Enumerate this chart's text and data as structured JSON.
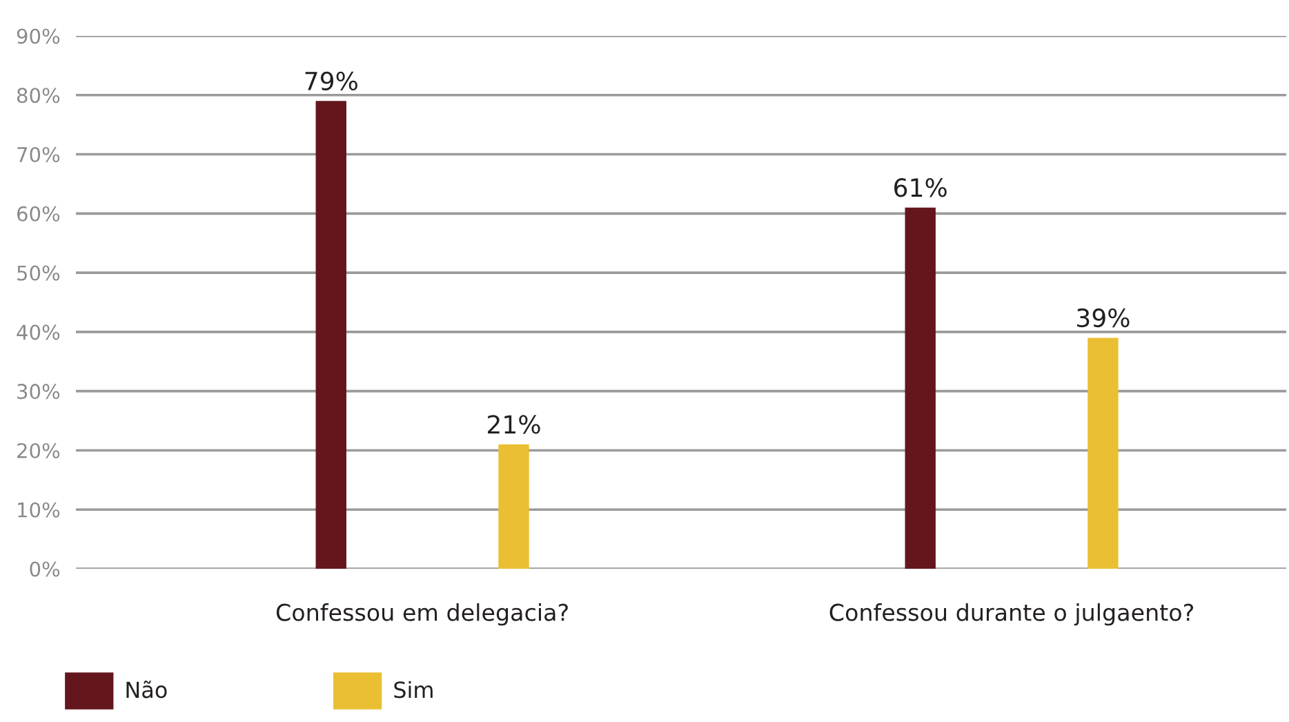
{
  "chart_data": {
    "type": "bar",
    "categories": [
      "Confessou em delegacia?",
      "Confessou durante o julgaento?"
    ],
    "series": [
      {
        "name": "Não",
        "color": "#63171d",
        "values": [
          79,
          61
        ],
        "value_labels": [
          "79%",
          "61%"
        ]
      },
      {
        "name": "Sim",
        "color": "#ebbf33",
        "values": [
          21,
          39
        ],
        "value_labels": [
          "21%",
          "39%"
        ]
      }
    ],
    "ylim": [
      0,
      90
    ],
    "yticks": [
      {
        "value": 0,
        "label": "0%"
      },
      {
        "value": 10,
        "label": "10%"
      },
      {
        "value": 20,
        "label": "20%"
      },
      {
        "value": 30,
        "label": "30%"
      },
      {
        "value": 40,
        "label": "40%"
      },
      {
        "value": 50,
        "label": "50%"
      },
      {
        "value": 60,
        "label": "60%"
      },
      {
        "value": 70,
        "label": "70%"
      },
      {
        "value": 80,
        "label": "80%"
      },
      {
        "value": 90,
        "label": "90%"
      }
    ],
    "grid": "y",
    "legend": "bottom"
  }
}
